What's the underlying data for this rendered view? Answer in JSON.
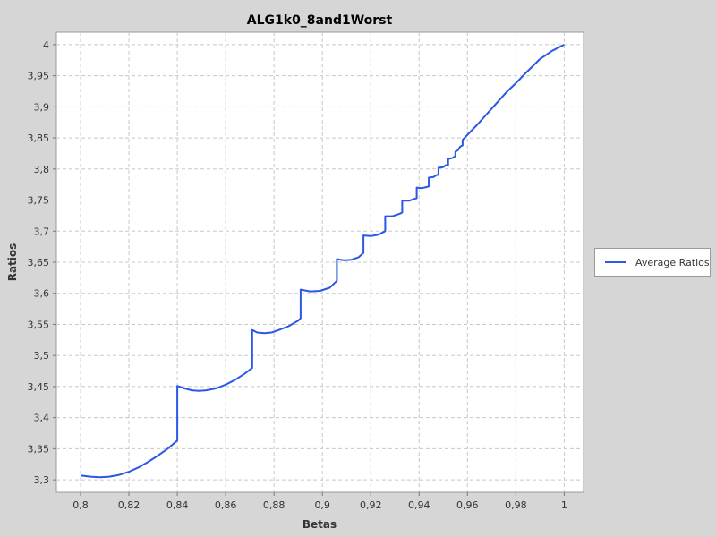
{
  "chart_data": {
    "type": "line",
    "title": "ALG1k0_8and1Worst",
    "xlabel": "Betas",
    "ylabel": "Ratios",
    "xlim": [
      0.79,
      1.008
    ],
    "ylim": [
      3.28,
      4.02
    ],
    "x_ticks": [
      "0,8",
      "0,82",
      "0,84",
      "0,86",
      "0,88",
      "0,9",
      "0,92",
      "0,94",
      "0,96",
      "0,98",
      "1"
    ],
    "y_ticks": [
      "3,3",
      "3,35",
      "3,4",
      "3,45",
      "3,5",
      "3,55",
      "3,6",
      "3,65",
      "3,7",
      "3,75",
      "3,8",
      "3,85",
      "3,9",
      "3,95",
      "4"
    ],
    "grid": true,
    "legend_position": "right",
    "colors": {
      "series": "#2a57e6",
      "grid": "#c8c8c8",
      "plot_bg": "#ffffff",
      "background": "#d6d6d6"
    },
    "series": [
      {
        "name": "Average Ratios",
        "x": [
          0.8,
          0.804,
          0.808,
          0.812,
          0.816,
          0.82,
          0.824,
          0.828,
          0.832,
          0.836,
          0.84,
          0.84,
          0.843,
          0.846,
          0.849,
          0.852,
          0.856,
          0.86,
          0.864,
          0.868,
          0.871,
          0.871,
          0.873,
          0.876,
          0.879,
          0.882,
          0.886,
          0.89,
          0.891,
          0.891,
          0.895,
          0.899,
          0.903,
          0.906,
          0.906,
          0.909,
          0.912,
          0.915,
          0.917,
          0.917,
          0.92,
          0.923,
          0.926,
          0.926,
          0.929,
          0.932,
          0.933,
          0.933,
          0.936,
          0.938,
          0.939,
          0.939,
          0.941,
          0.943,
          0.944,
          0.944,
          0.946,
          0.947,
          0.948,
          0.948,
          0.95,
          0.951,
          0.952,
          0.952,
          0.954,
          0.955,
          0.955,
          0.956,
          0.957,
          0.958,
          0.958,
          0.961,
          0.964,
          0.967,
          0.97,
          0.973,
          0.976,
          0.98,
          0.985,
          0.99,
          0.995,
          1.0
        ],
        "y": [
          3.307,
          3.305,
          3.304,
          3.305,
          3.308,
          3.313,
          3.32,
          3.329,
          3.339,
          3.35,
          3.363,
          3.451,
          3.447,
          3.444,
          3.443,
          3.444,
          3.447,
          3.453,
          3.461,
          3.471,
          3.48,
          3.541,
          3.537,
          3.536,
          3.537,
          3.541,
          3.547,
          3.556,
          3.56,
          3.606,
          3.603,
          3.604,
          3.609,
          3.62,
          3.655,
          3.653,
          3.654,
          3.658,
          3.665,
          3.693,
          3.692,
          3.694,
          3.7,
          3.724,
          3.724,
          3.728,
          3.73,
          3.749,
          3.749,
          3.752,
          3.753,
          3.77,
          3.769,
          3.771,
          3.772,
          3.786,
          3.787,
          3.79,
          3.791,
          3.802,
          3.803,
          3.806,
          3.806,
          3.816,
          3.818,
          3.821,
          3.828,
          3.83,
          3.836,
          3.838,
          3.847,
          3.859,
          3.871,
          3.884,
          3.897,
          3.91,
          3.923,
          3.938,
          3.958,
          3.977,
          3.99,
          4.0
        ]
      }
    ]
  }
}
